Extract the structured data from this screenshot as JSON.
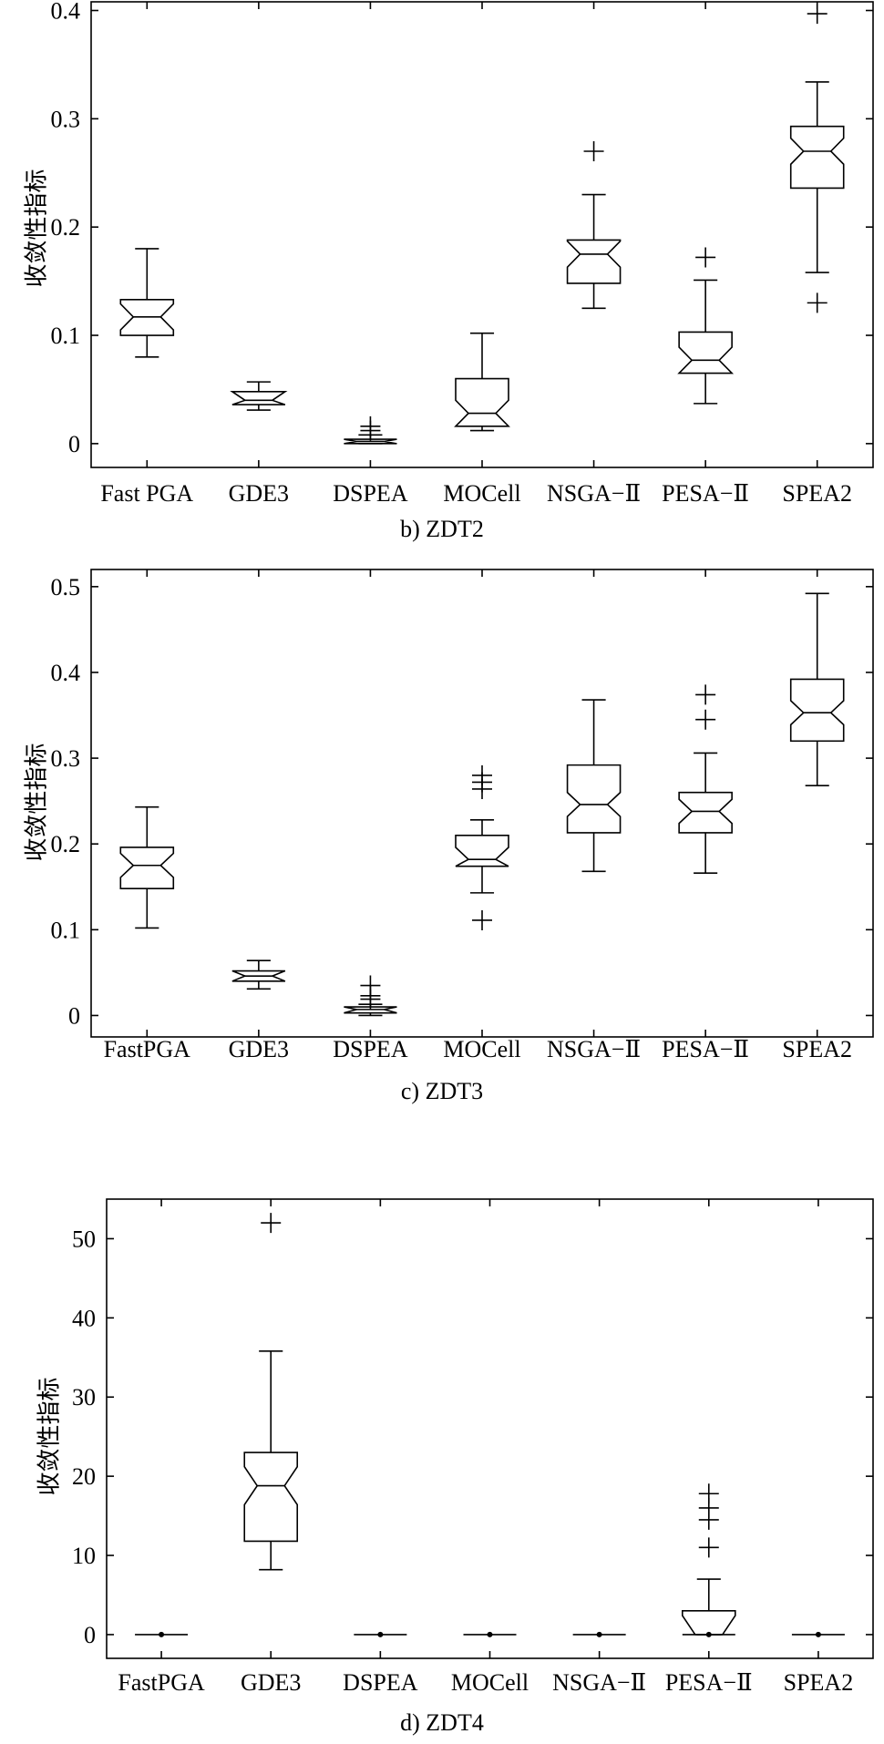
{
  "chart_data": [
    {
      "type": "boxplot",
      "caption": "b) ZDT2",
      "ylabel": "收敛性指标",
      "ylim": [
        -0.022,
        0.408
      ],
      "yticks": [
        "0",
        "0.1",
        "0.2",
        "0.3",
        "0.4"
      ],
      "ytick_values": [
        0,
        0.1,
        0.2,
        0.3,
        0.4
      ],
      "grid": false,
      "notched": true,
      "categories": [
        "Fast PGA",
        "GDE3",
        "DSPEA",
        "MOCell",
        "NSGA−Ⅱ",
        "PESA−Ⅱ",
        "SPEA2"
      ],
      "boxes": [
        {
          "whisker_low": 0.08,
          "q1": 0.1,
          "median": 0.117,
          "q3": 0.133,
          "whisker_high": 0.18,
          "outliers": []
        },
        {
          "whisker_low": 0.031,
          "q1": 0.036,
          "median": 0.04,
          "q3": 0.048,
          "whisker_high": 0.057,
          "outliers": []
        },
        {
          "whisker_low": 0.0,
          "q1": 0.0,
          "median": 0.002,
          "q3": 0.004,
          "whisker_high": 0.008,
          "outliers": [
            0.012,
            0.016
          ]
        },
        {
          "whisker_low": 0.012,
          "q1": 0.016,
          "median": 0.028,
          "q3": 0.06,
          "whisker_high": 0.102,
          "outliers": []
        },
        {
          "whisker_low": 0.125,
          "q1": 0.148,
          "median": 0.175,
          "q3": 0.188,
          "whisker_high": 0.23,
          "outliers": [
            0.27
          ]
        },
        {
          "whisker_low": 0.037,
          "q1": 0.065,
          "median": 0.077,
          "q3": 0.103,
          "whisker_high": 0.151,
          "outliers": [
            0.172
          ]
        },
        {
          "whisker_low": 0.158,
          "q1": 0.236,
          "median": 0.27,
          "q3": 0.293,
          "whisker_high": 0.334,
          "outliers": [
            0.13,
            0.397
          ]
        }
      ]
    },
    {
      "type": "boxplot",
      "caption": "c) ZDT3",
      "ylabel": "收敛性指标",
      "ylim": [
        -0.025,
        0.52
      ],
      "yticks": [
        "0",
        "0.1",
        "0.2",
        "0.3",
        "0.4",
        "0.5"
      ],
      "ytick_values": [
        0,
        0.1,
        0.2,
        0.3,
        0.4,
        0.5
      ],
      "grid": false,
      "notched": true,
      "categories": [
        "FastPGA",
        "GDE3",
        "DSPEA",
        "MOCell",
        "NSGA−Ⅱ",
        "PESA−Ⅱ",
        "SPEA2"
      ],
      "boxes": [
        {
          "whisker_low": 0.102,
          "q1": 0.148,
          "median": 0.175,
          "q3": 0.196,
          "whisker_high": 0.243,
          "outliers": []
        },
        {
          "whisker_low": 0.031,
          "q1": 0.04,
          "median": 0.046,
          "q3": 0.052,
          "whisker_high": 0.064,
          "outliers": []
        },
        {
          "whisker_low": 0.0,
          "q1": 0.003,
          "median": 0.007,
          "q3": 0.01,
          "whisker_high": 0.013,
          "outliers": [
            0.019,
            0.023,
            0.035
          ]
        },
        {
          "whisker_low": 0.143,
          "q1": 0.174,
          "median": 0.182,
          "q3": 0.21,
          "whisker_high": 0.228,
          "outliers": [
            0.111,
            0.264,
            0.272,
            0.28
          ]
        },
        {
          "whisker_low": 0.168,
          "q1": 0.213,
          "median": 0.246,
          "q3": 0.292,
          "whisker_high": 0.368,
          "outliers": []
        },
        {
          "whisker_low": 0.166,
          "q1": 0.213,
          "median": 0.238,
          "q3": 0.26,
          "whisker_high": 0.306,
          "outliers": [
            0.345,
            0.374
          ]
        },
        {
          "whisker_low": 0.268,
          "q1": 0.32,
          "median": 0.353,
          "q3": 0.392,
          "whisker_high": 0.492,
          "outliers": []
        }
      ]
    },
    {
      "type": "boxplot",
      "caption": "d) ZDT4",
      "ylabel": "收敛性指标",
      "ylim": [
        -3,
        55
      ],
      "yticks": [
        "0",
        "10",
        "20",
        "30",
        "40",
        "50"
      ],
      "ytick_values": [
        0,
        10,
        20,
        30,
        40,
        50
      ],
      "grid": false,
      "notched": true,
      "categories": [
        "FastPGA",
        "GDE3",
        "DSPEA",
        "MOCell",
        "NSGA−Ⅱ",
        "PESA−Ⅱ",
        "SPEA2"
      ],
      "boxes": [
        {
          "whisker_low": 0,
          "q1": 0,
          "median": 0,
          "q3": 0,
          "whisker_high": 0,
          "outliers": []
        },
        {
          "whisker_low": 8.2,
          "q1": 11.8,
          "median": 18.8,
          "q3": 23.0,
          "whisker_high": 35.8,
          "outliers": [
            52.0
          ]
        },
        {
          "whisker_low": 0,
          "q1": 0,
          "median": 0,
          "q3": 0,
          "whisker_high": 0,
          "outliers": []
        },
        {
          "whisker_low": 0,
          "q1": 0,
          "median": 0,
          "q3": 0,
          "whisker_high": 0,
          "outliers": []
        },
        {
          "whisker_low": 0,
          "q1": 0,
          "median": 0,
          "q3": 0,
          "whisker_high": 0,
          "outliers": []
        },
        {
          "whisker_low": 0,
          "q1": 0,
          "median": 0,
          "q3": 3.0,
          "whisker_high": 7.0,
          "outliers": [
            11.0,
            14.5,
            16.0,
            17.8
          ]
        },
        {
          "whisker_low": 0,
          "q1": 0,
          "median": 0,
          "q3": 0,
          "whisker_high": 0,
          "outliers": []
        }
      ]
    }
  ]
}
